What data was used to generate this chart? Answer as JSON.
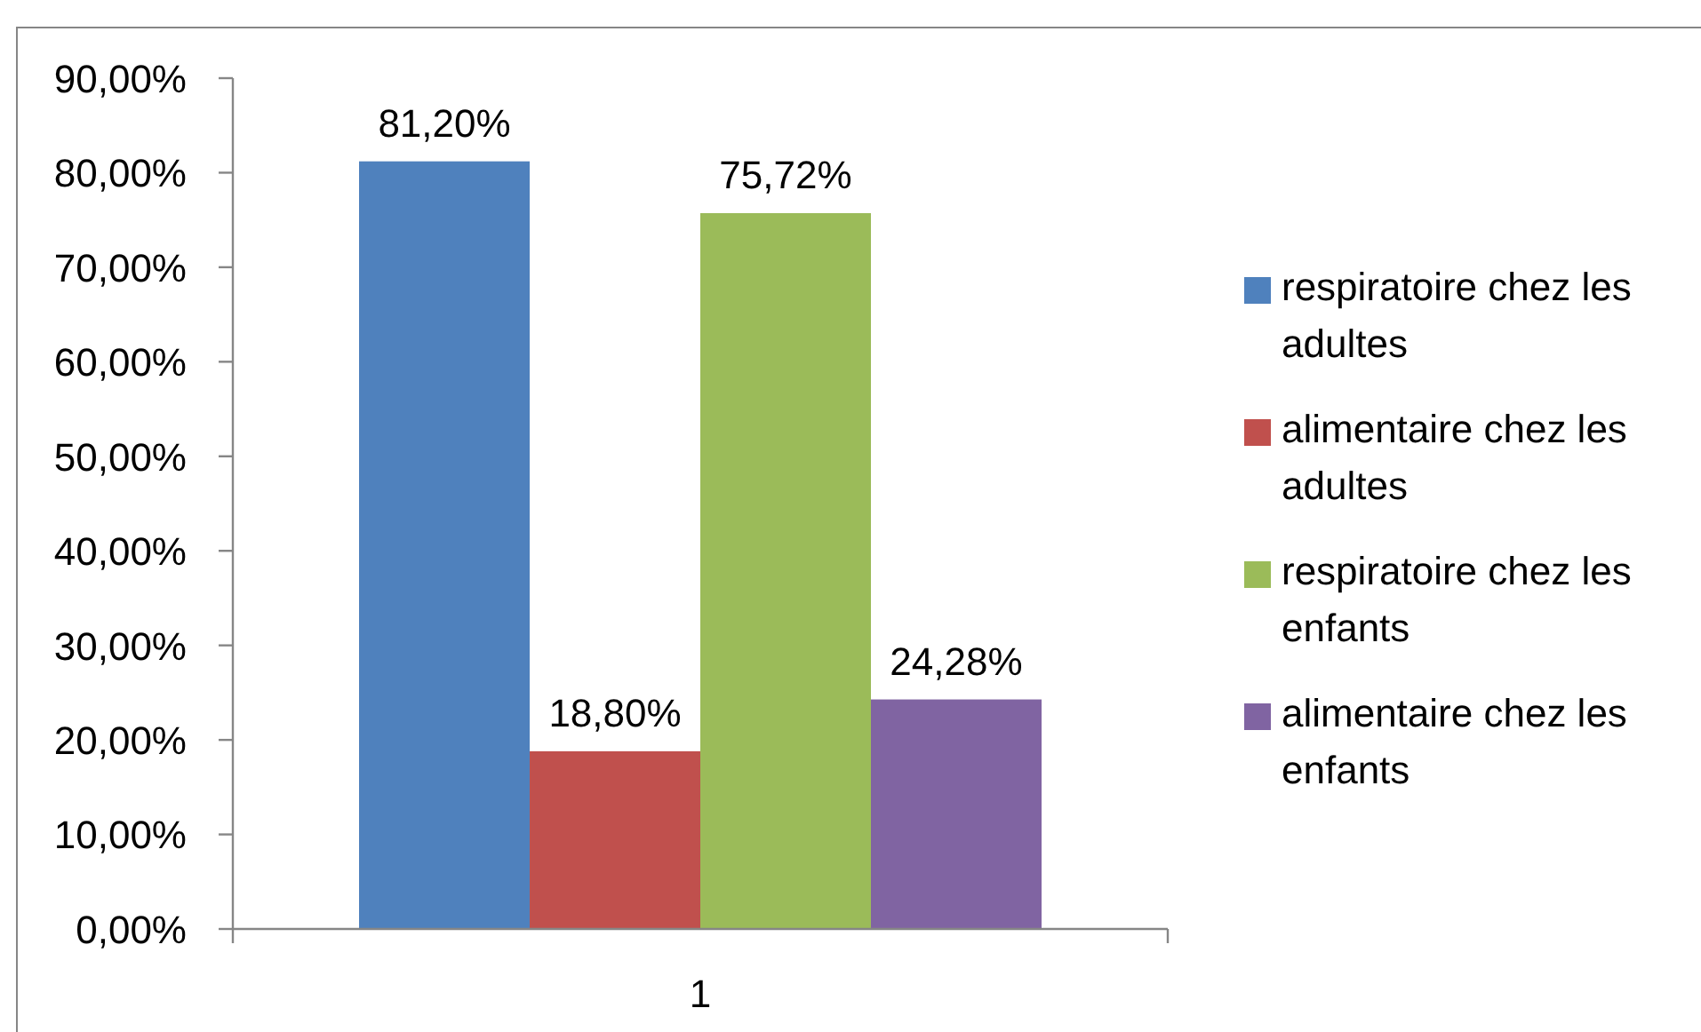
{
  "chart_data": {
    "type": "bar",
    "categories": [
      "1"
    ],
    "series": [
      {
        "name": "respiratoire chez les adultes",
        "color": "#4f81bd",
        "values": [
          81.2
        ],
        "value_labels": [
          "81,20%"
        ]
      },
      {
        "name": "alimentaire chez les adultes",
        "color": "#c0504d",
        "values": [
          18.8
        ],
        "value_labels": [
          "18,80%"
        ]
      },
      {
        "name": "respiratoire chez les enfants",
        "color": "#9bbb59",
        "values": [
          75.72
        ],
        "value_labels": [
          "75,72%"
        ]
      },
      {
        "name": "alimentaire chez les enfants",
        "color": "#8064a2",
        "values": [
          24.28
        ],
        "value_labels": [
          "24,28%"
        ]
      }
    ],
    "ylim": [
      0,
      90
    ],
    "yticks": [
      {
        "value": 0,
        "label": "0,00%"
      },
      {
        "value": 10,
        "label": "10,00%"
      },
      {
        "value": 20,
        "label": "20,00%"
      },
      {
        "value": 30,
        "label": "30,00%"
      },
      {
        "value": 40,
        "label": "40,00%"
      },
      {
        "value": 50,
        "label": "50,00%"
      },
      {
        "value": 60,
        "label": "60,00%"
      },
      {
        "value": 70,
        "label": "70,00%"
      },
      {
        "value": 80,
        "label": "80,00%"
      },
      {
        "value": 90,
        "label": "90,00%"
      }
    ],
    "legend": "right"
  }
}
